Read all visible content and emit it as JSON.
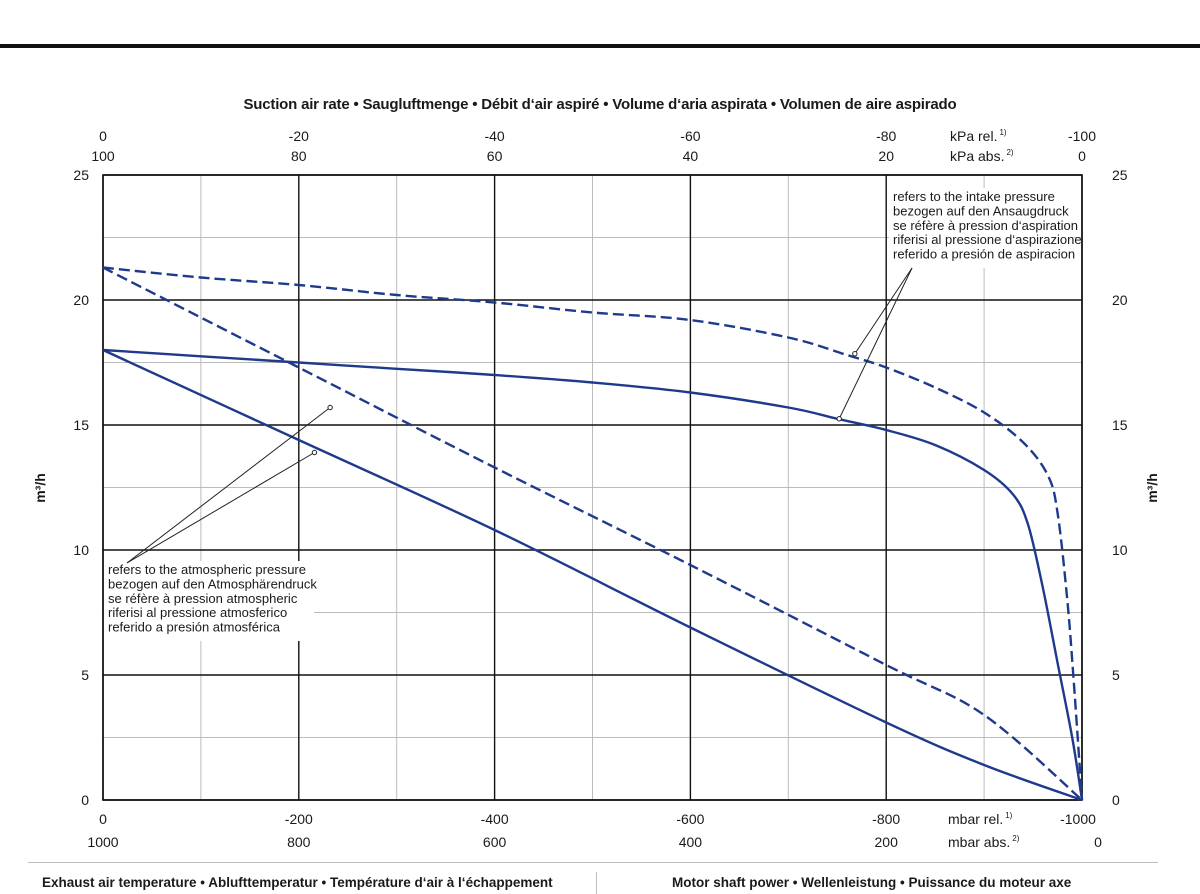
{
  "header": {
    "title": "Suction air rate  •  Saugluftmenge  •  Débit d‘air aspiré  •  Volume d‘aria aspirata  •  Volumen de aire aspirado"
  },
  "footer": {
    "left": "Exhaust air temperature  •  Ablufttemperatur  •  Température d‘air à l‘échappement",
    "right": "Motor shaft power  •  Wellenleistung  •  Puissance du moteur axe"
  },
  "colors": {
    "curve": "#1f3a8c",
    "grid_major": "#111111",
    "grid_minor": "#bcbcbc"
  },
  "chart_data": {
    "type": "line",
    "title": "Suction air rate  •  Saugluftmenge  •  Débit d‘air aspiré  •  Volume d‘aria aspirata  •  Volumen de aire aspirado",
    "xlabel": "",
    "ylabel": "m³/h",
    "xlim": [
      0,
      -1000
    ],
    "ylim": [
      0,
      25
    ],
    "x_major_step": -200,
    "x_minor_step": -100,
    "y_major_step": 5,
    "y_minor_step": 2.5,
    "grid": true,
    "legend": "none",
    "y_ticks": [
      "0",
      "5",
      "10",
      "15",
      "20",
      "25"
    ],
    "x_axis_bottom": {
      "unit_rel": "mbar rel.",
      "unit_rel_sup": "1)",
      "unit_abs": "mbar abs.",
      "unit_abs_sup": "2)",
      "ticks": [
        {
          "x": 0,
          "rel": "0",
          "abs": "1000"
        },
        {
          "x": -200,
          "rel": "-200",
          "abs": "800"
        },
        {
          "x": -400,
          "rel": "-400",
          "abs": "600"
        },
        {
          "x": -600,
          "rel": "-600",
          "abs": "400"
        },
        {
          "x": -800,
          "rel": "-800",
          "abs": "200"
        },
        {
          "x": -1000,
          "rel": "-1000",
          "abs": "0"
        }
      ]
    },
    "x_axis_top": {
      "unit_rel": "kPa rel.",
      "unit_rel_sup": "1)",
      "unit_abs": "kPa abs.",
      "unit_abs_sup": "2)",
      "ticks": [
        {
          "x": 0,
          "rel": "0",
          "abs": "100"
        },
        {
          "x": -200,
          "rel": "-20",
          "abs": "80"
        },
        {
          "x": -400,
          "rel": "-40",
          "abs": "60"
        },
        {
          "x": -600,
          "rel": "-60",
          "abs": "40"
        },
        {
          "x": -800,
          "rel": "-80",
          "abs": "20"
        },
        {
          "x": -1000,
          "rel": "-100",
          "abs": "0"
        }
      ]
    },
    "series": [
      {
        "style": "dashed",
        "reference": "intake",
        "points": [
          [
            0,
            21.3
          ],
          [
            -100,
            20.9
          ],
          [
            -200,
            20.6
          ],
          [
            -300,
            20.2
          ],
          [
            -400,
            19.9
          ],
          [
            -500,
            19.5
          ],
          [
            -600,
            19.2
          ],
          [
            -700,
            18.5
          ],
          [
            -760,
            17.8
          ],
          [
            -800,
            17.3
          ],
          [
            -850,
            16.5
          ],
          [
            -900,
            15.5
          ],
          [
            -940,
            14.3
          ],
          [
            -965,
            13.0
          ],
          [
            -975,
            11.5
          ],
          [
            -985,
            8.0
          ],
          [
            -992,
            4.5
          ],
          [
            -1000,
            0
          ]
        ]
      },
      {
        "style": "solid",
        "reference": "intake",
        "points": [
          [
            0,
            18.0
          ],
          [
            -100,
            17.75
          ],
          [
            -200,
            17.5
          ],
          [
            -300,
            17.25
          ],
          [
            -400,
            17.0
          ],
          [
            -500,
            16.7
          ],
          [
            -600,
            16.3
          ],
          [
            -700,
            15.7
          ],
          [
            -750,
            15.25
          ],
          [
            -800,
            14.8
          ],
          [
            -850,
            14.2
          ],
          [
            -900,
            13.2
          ],
          [
            -930,
            12.2
          ],
          [
            -945,
            11.0
          ],
          [
            -960,
            8.5
          ],
          [
            -975,
            5.5
          ],
          [
            -990,
            2.5
          ],
          [
            -1000,
            0
          ]
        ]
      },
      {
        "style": "dashed",
        "reference": "atmospheric",
        "points": [
          [
            0,
            21.3
          ],
          [
            -200,
            17.3
          ],
          [
            -400,
            13.3
          ],
          [
            -600,
            9.4
          ],
          [
            -800,
            5.4
          ],
          [
            -900,
            3.4
          ],
          [
            -1000,
            0
          ]
        ]
      },
      {
        "style": "solid",
        "reference": "atmospheric",
        "points": [
          [
            0,
            18.0
          ],
          [
            -200,
            14.4
          ],
          [
            -400,
            10.8
          ],
          [
            -600,
            6.9
          ],
          [
            -800,
            3.1
          ],
          [
            -900,
            1.4
          ],
          [
            -1000,
            0
          ]
        ]
      }
    ],
    "annotations": [
      {
        "lines": [
          "refers to the intake pressure",
          "bezogen auf den Ansaugdruck",
          "se réfère à pression d‘aspiration",
          "riferisi al pressione d‘aspirazione",
          "referido a presión de aspiracion"
        ],
        "targets": [
          [
            -768,
            17.85
          ],
          [
            -752,
            15.25
          ]
        ]
      },
      {
        "lines": [
          "refers to the atmospheric pressure",
          "bezogen auf den Atmosphärendruck",
          "se réfère à pression atmospheric",
          "riferisi al pressione atmosferico",
          "referido a presión atmosférica"
        ],
        "targets": [
          [
            -232,
            15.7
          ],
          [
            -216,
            13.9
          ]
        ]
      }
    ]
  }
}
